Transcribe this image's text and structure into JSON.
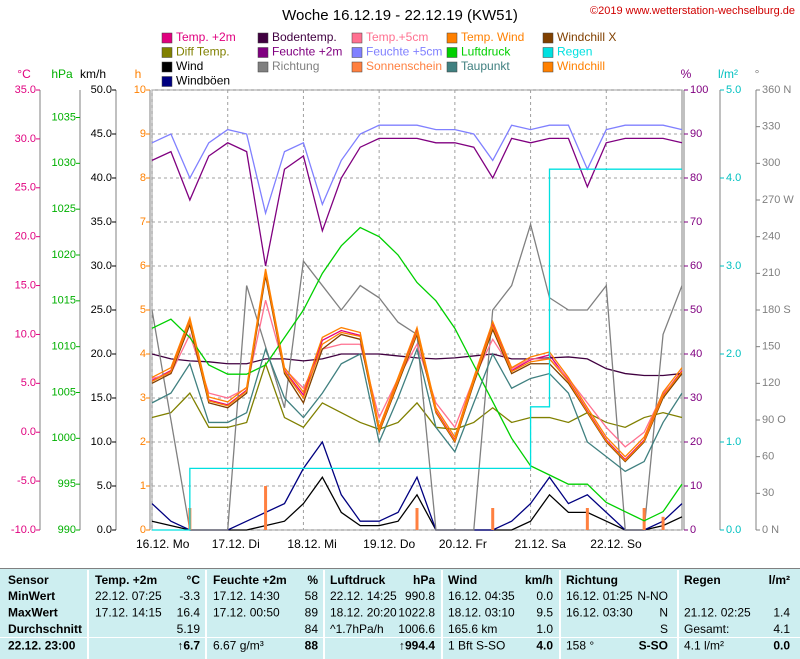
{
  "chart_data": {
    "type": "line",
    "title": "Woche 16.12.19 - 22.12.19 (KW51)",
    "copyright": "©2019 www.wetterstation-wechselburg.de",
    "x": [
      0,
      6,
      12,
      18,
      24,
      30,
      36,
      42,
      48,
      54,
      60,
      66,
      72,
      78,
      84,
      90,
      96,
      102,
      108,
      114,
      120,
      126,
      132,
      138,
      144,
      150,
      156,
      162,
      168
    ],
    "xlim": [
      0,
      168
    ],
    "xticks": [
      {
        "value": 0,
        "label": "16.12.  Mo"
      },
      {
        "value": 24,
        "label": "17.12.  Di"
      },
      {
        "value": 48,
        "label": "18.12.  Mi"
      },
      {
        "value": 72,
        "label": "19.12.  Do"
      },
      {
        "value": 96,
        "label": "20.12.  Fr"
      },
      {
        "value": 120,
        "label": "21.12.  Sa"
      },
      {
        "value": 144,
        "label": "22.12.  So"
      }
    ],
    "grid": true,
    "axes": [
      {
        "label": "°C",
        "color": "#e0007f",
        "lim": [
          -10,
          35
        ],
        "ticks": [
          {
            "value": 35,
            "label": "35.0"
          },
          {
            "value": 30,
            "label": "30.0"
          },
          {
            "value": 25,
            "label": "25.0"
          },
          {
            "value": 20,
            "label": "20.0"
          },
          {
            "value": 15,
            "label": "15.0"
          },
          {
            "value": 10,
            "label": "10.0"
          },
          {
            "value": 5,
            "label": "5.0"
          },
          {
            "value": 0,
            "label": "0.0"
          },
          {
            "value": -5,
            "label": "-5.0"
          },
          {
            "value": -10,
            "label": "-10.0"
          }
        ]
      },
      {
        "label": "hPa",
        "color": "#00b000",
        "lim": [
          990,
          1038
        ],
        "ticks": [
          1035,
          1030,
          1025,
          1020,
          1015,
          1010,
          1005,
          1000,
          995,
          990
        ]
      },
      {
        "label": "km/h",
        "color": "#000000",
        "lim": [
          0,
          50
        ],
        "ticks": [
          {
            "value": 50,
            "label": "50.0"
          },
          {
            "value": 45,
            "label": "45.0"
          },
          {
            "value": 40,
            "label": "40.0"
          },
          {
            "value": 35,
            "label": "35.0"
          },
          {
            "value": 30,
            "label": "30.0"
          },
          {
            "value": 25,
            "label": "25.0"
          },
          {
            "value": 20,
            "label": "20.0"
          },
          {
            "value": 15,
            "label": "15.0"
          },
          {
            "value": 10,
            "label": "10.0"
          },
          {
            "value": 5,
            "label": "5.0"
          },
          {
            "value": 0,
            "label": "0.0"
          }
        ]
      },
      {
        "label": "h",
        "color": "#ff8000",
        "lim": [
          0,
          10
        ],
        "ticks": [
          10,
          9,
          8,
          7,
          6,
          5,
          4,
          3,
          2,
          1,
          0
        ]
      },
      {
        "label": "%",
        "color": "#800080",
        "lim": [
          0,
          100
        ],
        "ticks": [
          100,
          90,
          80,
          70,
          60,
          50,
          40,
          30,
          20,
          10,
          0
        ]
      },
      {
        "label": "l/m²",
        "color": "#00c0c0",
        "lim": [
          0,
          5
        ],
        "ticks": [
          {
            "value": 5,
            "label": "5.0"
          },
          {
            "value": 4,
            "label": "4.0"
          },
          {
            "value": 3,
            "label": "3.0"
          },
          {
            "value": 2,
            "label": "2.0"
          },
          {
            "value": 1,
            "label": "1.0"
          },
          {
            "value": 0,
            "label": "0.0"
          }
        ]
      },
      {
        "label": "°",
        "color": "#808080",
        "lim": [
          0,
          360
        ],
        "ticks": [
          {
            "value": 360,
            "label": "360 N"
          },
          330,
          300,
          {
            "value": 270,
            "label": "270 W"
          },
          240,
          210,
          {
            "value": 180,
            "label": "180 S"
          },
          150,
          120,
          {
            "value": 90,
            "label": "90 O"
          },
          60,
          30,
          {
            "value": 0,
            "label": "0 N"
          }
        ]
      }
    ],
    "series": [
      {
        "name": "Temp. +2m",
        "color": "#e0007f",
        "axis": "°C",
        "values": [
          5.3,
          6.3,
          11.4,
          3.3,
          2.8,
          4.3,
          16.4,
          6.3,
          3.8,
          9.4,
          10.4,
          9.9,
          0.2,
          5.3,
          10.4,
          2.2,
          -0.8,
          5.3,
          11.0,
          6.3,
          7.4,
          7.9,
          5.3,
          2.2,
          -0.8,
          -2.8,
          -0.8,
          3.8,
          6.3
        ]
      },
      {
        "name": "Diff Temp.",
        "color": "#808000",
        "axis": "°C",
        "values": [
          1.5,
          2.0,
          4.0,
          0.5,
          0.5,
          1.0,
          7.0,
          1.5,
          0.5,
          3.0,
          2.0,
          1.0,
          0.3,
          1.0,
          3.0,
          0.5,
          0.3,
          1.0,
          2.5,
          1.0,
          1.5,
          1.5,
          1.0,
          2.0,
          1.0,
          0.5,
          1.5,
          2.0,
          1.5
        ]
      },
      {
        "name": "Wind",
        "color": "#000000",
        "axis": "km/h",
        "values": [
          1,
          0.5,
          0,
          0,
          0,
          0,
          0.5,
          1,
          3,
          6,
          2,
          0.5,
          0.5,
          1,
          4,
          0,
          0,
          0,
          0,
          0,
          1,
          4,
          2,
          2,
          1,
          0,
          0,
          0.5,
          1.5
        ]
      },
      {
        "name": "Windböen",
        "color": "#000080",
        "axis": "km/h",
        "values": [
          3,
          1,
          0,
          0,
          0,
          1,
          2,
          3,
          7,
          10,
          4,
          1,
          1,
          2,
          6,
          0,
          0,
          0,
          0,
          1,
          3,
          6,
          3,
          4,
          2,
          0,
          0,
          1,
          3
        ]
      },
      {
        "name": "Bodentemp.",
        "color": "#400040",
        "axis": "°C",
        "values": [
          8,
          7.5,
          7.3,
          7.2,
          7.0,
          7.0,
          7.5,
          7.5,
          7.3,
          7.5,
          8,
          8,
          8,
          7.8,
          7.6,
          7.5,
          7.6,
          7.8,
          8,
          7.5,
          7.5,
          7.6,
          7.7,
          7.5,
          6.5,
          6.0,
          5.8,
          5.8,
          6.0
        ]
      },
      {
        "name": "Feuchte +2m",
        "color": "#800080",
        "axis": "%",
        "values": [
          84,
          86,
          75,
          85,
          88,
          86,
          60,
          82,
          85,
          68,
          80,
          87,
          89,
          89,
          89,
          88,
          88,
          87,
          80,
          89,
          88,
          89,
          89,
          78,
          88,
          89,
          89,
          89,
          88
        ]
      },
      {
        "name": "Richtung",
        "color": "#808080",
        "axis": "°",
        "values": [
          180,
          90,
          0,
          0,
          0,
          200,
          150,
          100,
          220,
          200,
          180,
          200,
          190,
          170,
          160,
          0,
          0,
          0,
          180,
          200,
          250,
          190,
          180,
          180,
          200,
          0,
          0,
          160,
          200
        ]
      },
      {
        "name": "Temp.+5cm",
        "color": "#ff7090",
        "axis": "°C",
        "values": [
          5.5,
          6.0,
          10.0,
          4.0,
          3.5,
          4.5,
          13.5,
          6.5,
          4.5,
          8.5,
          9.0,
          9.0,
          1.5,
          5.5,
          9.0,
          3.0,
          0.5,
          5.5,
          9.5,
          6.5,
          7.5,
          7.5,
          5.5,
          3.0,
          0.5,
          -1.5,
          0.0,
          4.0,
          6.0
        ]
      },
      {
        "name": "Feuchte +5cm",
        "color": "#8080ff",
        "axis": "%",
        "values": [
          88,
          90,
          80,
          88,
          91,
          90,
          72,
          86,
          88,
          74,
          84,
          90,
          92,
          92,
          92,
          91,
          91,
          90,
          84,
          92,
          91,
          92,
          92,
          82,
          91,
          92,
          92,
          92,
          91
        ]
      },
      {
        "name": "Sonnenschein",
        "color": "#ff8040",
        "axis": "h",
        "type": "bar",
        "values": [
          0,
          0,
          0.5,
          0,
          0,
          0,
          1,
          0,
          0,
          0,
          0,
          0,
          0,
          0,
          0.5,
          0,
          0,
          0,
          0.5,
          0,
          0,
          0,
          0,
          0.5,
          0,
          0,
          0.5,
          0.3,
          0
        ]
      },
      {
        "name": "Temp. Wind",
        "color": "#ff8000",
        "axis": "°C",
        "values": [
          5.6,
          6.6,
          11.7,
          3.6,
          3.1,
          4.6,
          16.7,
          6.6,
          4.1,
          9.7,
          10.7,
          10.2,
          0.5,
          5.6,
          10.7,
          2.5,
          -0.5,
          5.6,
          11.3,
          6.6,
          7.7,
          8.2,
          5.6,
          2.5,
          -0.5,
          -2.5,
          -0.5,
          4.1,
          6.6
        ]
      },
      {
        "name": "Luftdruck",
        "color": "#00d000",
        "axis": "hPa",
        "values": [
          1012,
          1013,
          1011,
          1008,
          1007,
          1007,
          1008,
          1011,
          1014,
          1018,
          1021,
          1023,
          1022,
          1020,
          1017,
          1015,
          1012,
          1008,
          1004,
          1000,
          997,
          996,
          995,
          995,
          993,
          992,
          991,
          992,
          995
        ]
      },
      {
        "name": "Taupunkt",
        "color": "#408080",
        "axis": "°C",
        "values": [
          3.0,
          4.0,
          7.0,
          1.0,
          1.0,
          2.0,
          8.5,
          3.5,
          1.5,
          4.0,
          7.0,
          8.0,
          -1.0,
          3.5,
          8.5,
          0.5,
          -2.0,
          3.0,
          8.0,
          4.5,
          5.5,
          6.0,
          4.0,
          -1.0,
          -2.5,
          -4.0,
          -3.0,
          1.0,
          4.0
        ]
      },
      {
        "name": "Windchill X",
        "color": "#804000",
        "axis": "°C",
        "values": [
          5.0,
          6.0,
          11.0,
          3.0,
          2.5,
          4.0,
          16.0,
          6.0,
          3.0,
          8.5,
          10.0,
          9.5,
          0.0,
          5.0,
          10.0,
          2.0,
          -1.0,
          5.0,
          10.5,
          6.0,
          7.0,
          7.0,
          5.0,
          2.0,
          -1.0,
          -3.0,
          -1.0,
          3.5,
          6.0
        ]
      },
      {
        "name": "Regen",
        "color": "#00e0e0",
        "axis": "l/m²",
        "step": true,
        "values": [
          0,
          0,
          0.7,
          0.7,
          0.7,
          0.7,
          0.7,
          0.7,
          0.7,
          0.7,
          0.7,
          0.7,
          0.7,
          0.7,
          0.7,
          0.7,
          0.7,
          0.7,
          0.7,
          0.7,
          1.4,
          4.1,
          4.1,
          4.1,
          4.1,
          4.1,
          4.1,
          4.1,
          4.1
        ]
      },
      {
        "name": "Windchill",
        "color": "#ff8000",
        "axis": "°C",
        "values": [
          5.2,
          6.2,
          11.3,
          3.2,
          2.7,
          4.2,
          16.3,
          6.2,
          3.5,
          9.0,
          10.2,
          9.8,
          0.1,
          5.2,
          10.2,
          2.1,
          -0.9,
          5.2,
          10.8,
          6.2,
          7.2,
          7.5,
          5.2,
          2.1,
          -0.9,
          -2.9,
          -0.9,
          3.7,
          6.2
        ]
      }
    ]
  },
  "table": {
    "header": [
      "Sensor",
      "Temp. +2m",
      "°C",
      "Feuchte +2m",
      "%",
      "Luftdruck",
      "hPa",
      "Wind",
      "km/h",
      "Richtung",
      null,
      "Regen",
      "l/m²"
    ],
    "rows": [
      [
        "MinWert",
        "22.12.  07:25",
        "-3.3",
        "17.12.  14:30",
        "58",
        "22.12.  14:25",
        "990.8",
        "16.12.  04:35",
        "0.0",
        "16.12.  01:25",
        "N-NO",
        null,
        null
      ],
      [
        "MaxWert",
        "17.12.  14:15",
        "16.4",
        "17.12.  00:50",
        "89",
        "18.12.  20:20",
        "1022.8",
        "18.12.  03:10",
        "9.5",
        "16.12.  03:30",
        "N",
        "21.12.  02:25",
        "1.4"
      ],
      [
        "Durchschnitt",
        null,
        "5.19",
        null,
        "84",
        "^1.7hPa/h",
        "1006.6",
        "165.6 km",
        "1.0",
        null,
        "S",
        "Gesamt:",
        "4.1"
      ],
      [
        "22.12.  23:00",
        null,
        "↑6.7",
        "6.67 g/m³",
        "88",
        null,
        "↑994.4",
        "1 Bft S-SO",
        "4.0",
        "158 °",
        "S-SO",
        "4.1 l/m²",
        "0.0"
      ]
    ]
  }
}
